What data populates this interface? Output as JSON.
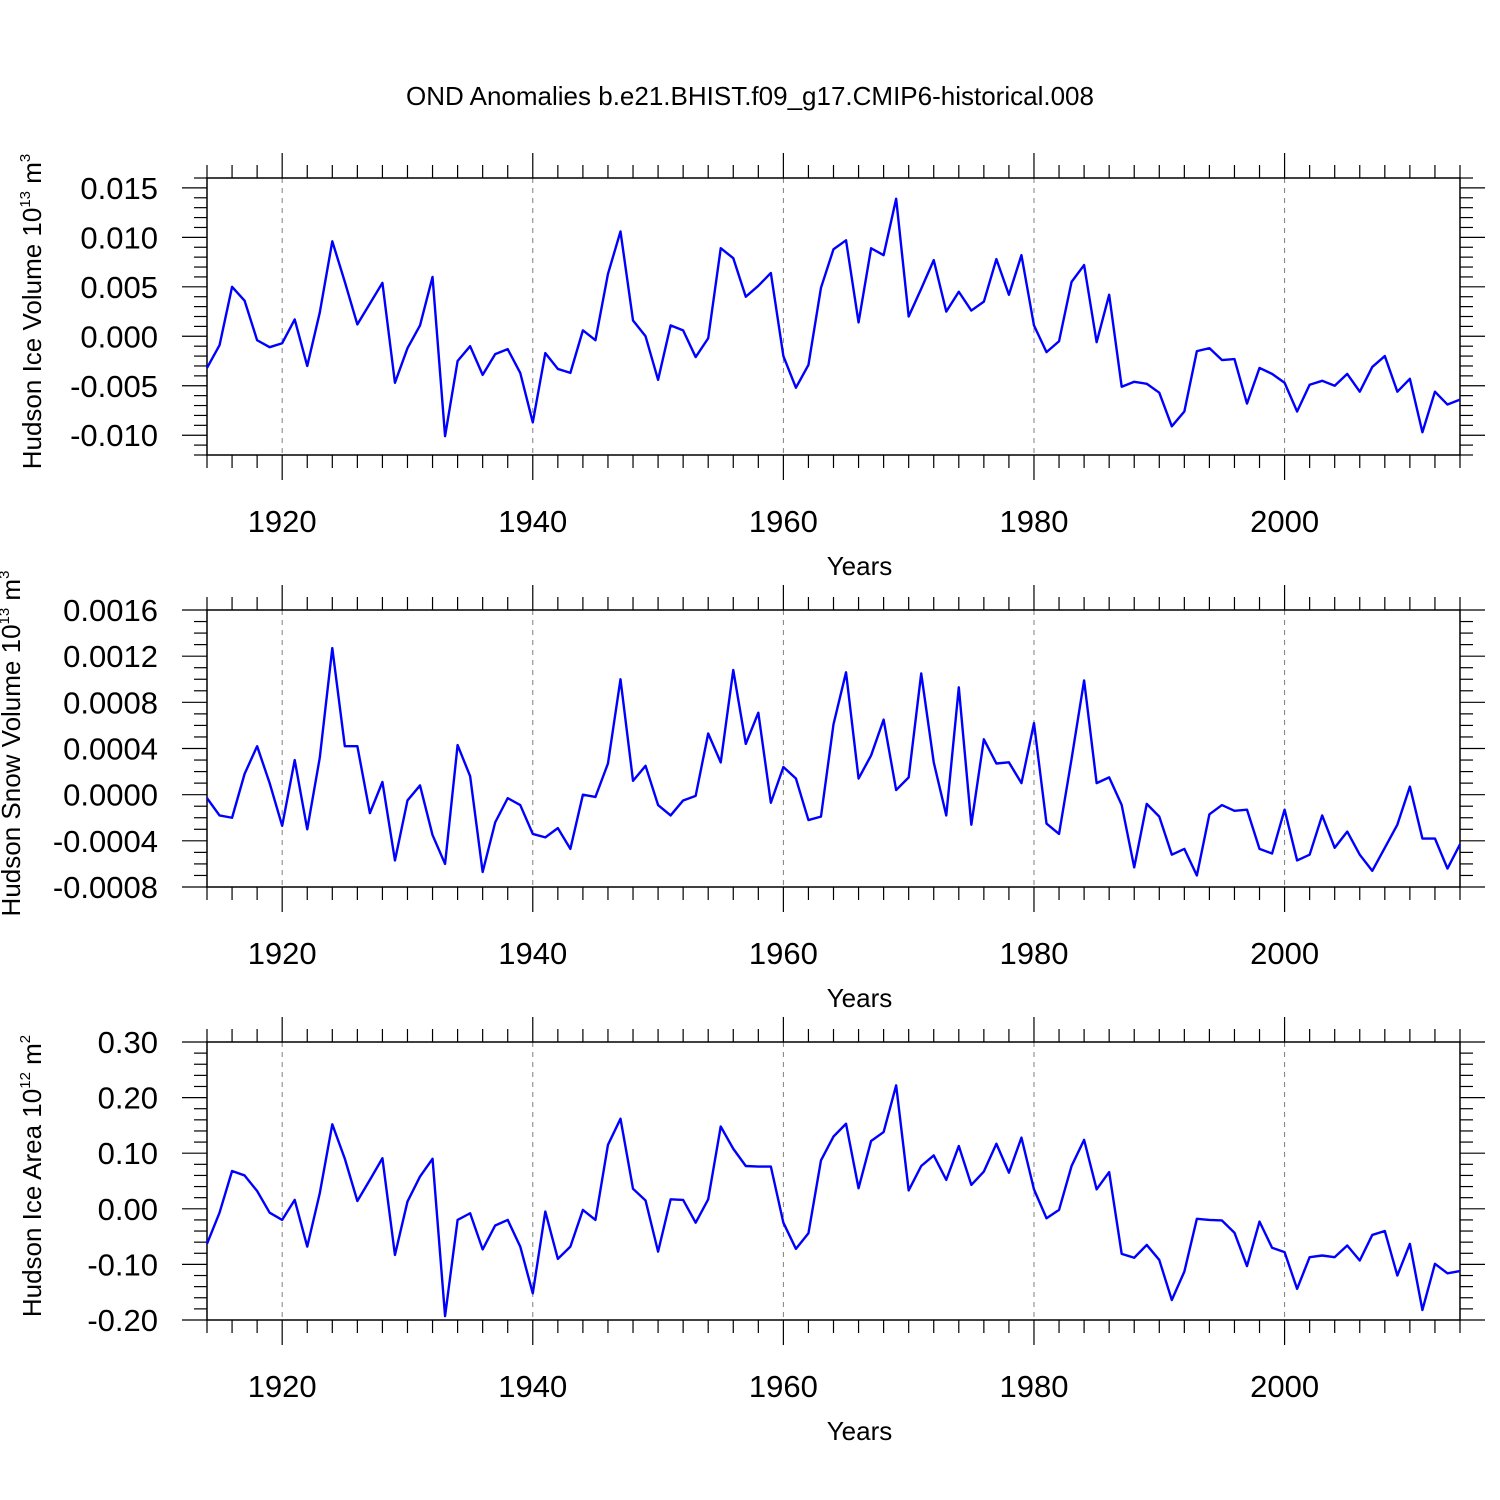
{
  "title": "OND Anomalies b.e21.BHIST.f09_g17.CMIP6-historical.008",
  "colors": {
    "line": "#0000ff",
    "axis": "#000000",
    "grid": "#7f7f7f"
  },
  "chart_data": [
    {
      "type": "line",
      "title": "OND Anomalies b.e21.BHIST.f09_g17.CMIP6-historical.008",
      "xlabel": "Years",
      "ylabel": "Hudson Ice Volume 10",
      "ylabel_sup": "13",
      "ylabel_unit": "m",
      "ylabel_unit_sup": "3",
      "xlim": [
        1914,
        2014
      ],
      "ylim": [
        -0.012,
        0.016
      ],
      "yticks": [
        -0.01,
        -0.005,
        0.0,
        0.005,
        0.01,
        0.015
      ],
      "ytick_labels": [
        "-0.010",
        "-0.005",
        "0.000",
        "0.005",
        "0.010",
        "0.015"
      ],
      "yminor_step": 0.001,
      "xticks": [
        1920,
        1940,
        1960,
        1980,
        2000
      ],
      "xtick_labels": [
        "1920",
        "1940",
        "1960",
        "1980",
        "2000"
      ],
      "xminor_step": 2,
      "grid_x": [
        1920,
        1940,
        1960,
        1980,
        2000
      ],
      "series": [
        {
          "name": "Hudson Ice Volume",
          "x_start": 1914,
          "values": [
            -0.0032,
            -0.0009,
            0.005,
            0.0036,
            -0.0004,
            -0.0011,
            -0.0007,
            0.0017,
            -0.003,
            0.0024,
            0.0096,
            0.0055,
            0.0012,
            0.0033,
            0.0054,
            -0.0047,
            -0.0012,
            0.0011,
            0.006,
            -0.0101,
            -0.0025,
            -0.001,
            -0.0039,
            -0.0018,
            -0.0013,
            -0.0037,
            -0.0087,
            -0.0017,
            -0.0033,
            -0.0037,
            0.0006,
            -0.0004,
            0.0063,
            0.0106,
            0.0016,
            0.0,
            -0.0044,
            0.0011,
            0.0006,
            -0.0021,
            -0.0002,
            0.0089,
            0.0079,
            0.004,
            0.0051,
            0.0064,
            -0.002,
            -0.0052,
            -0.0029,
            0.0049,
            0.0088,
            0.0097,
            0.0014,
            0.0089,
            0.0082,
            0.0139,
            0.002,
            0.0048,
            0.0077,
            0.0025,
            0.0045,
            0.0026,
            0.0035,
            0.0078,
            0.0042,
            0.0082,
            0.0011,
            -0.0016,
            -0.0005,
            0.0055,
            0.0072,
            -0.0006,
            0.0042,
            -0.0051,
            -0.0046,
            -0.0048,
            -0.0057,
            -0.0091,
            -0.0076,
            -0.0015,
            -0.0012,
            -0.0024,
            -0.0023,
            -0.0068,
            -0.0032,
            -0.0038,
            -0.0047,
            -0.0076,
            -0.0049,
            -0.0045,
            -0.005,
            -0.0038,
            -0.0056,
            -0.0031,
            -0.002,
            -0.0056,
            -0.0043,
            -0.0097,
            -0.0056,
            -0.0069,
            -0.0064
          ]
        }
      ]
    },
    {
      "type": "line",
      "xlabel": "Years",
      "ylabel": "Hudson Snow Volume 10",
      "ylabel_sup": "13",
      "ylabel_unit": "m",
      "ylabel_unit_sup": "3",
      "xlim": [
        1914,
        2014
      ],
      "ylim": [
        -0.0008,
        0.0016
      ],
      "yticks": [
        -0.0008,
        -0.0004,
        0.0,
        0.0004,
        0.0008,
        0.0012,
        0.0016
      ],
      "ytick_labels": [
        "-0.0008",
        "-0.0004",
        "0.0000",
        "0.0004",
        "0.0008",
        "0.0012",
        "0.0016"
      ],
      "yminor_step": 0.0001,
      "xticks": [
        1920,
        1940,
        1960,
        1980,
        2000
      ],
      "xtick_labels": [
        "1920",
        "1940",
        "1960",
        "1980",
        "2000"
      ],
      "xminor_step": 2,
      "grid_x": [
        1920,
        1940,
        1960,
        1980,
        2000
      ],
      "series": [
        {
          "name": "Hudson Snow Volume",
          "x_start": 1914,
          "values": [
            -3e-05,
            -0.00018,
            -0.0002,
            0.00018,
            0.00042,
            0.0001,
            -0.00027,
            0.0003,
            -0.0003,
            0.00032,
            0.00127,
            0.00042,
            0.00042,
            -0.00016,
            0.00011,
            -0.00057,
            -5e-05,
            8e-05,
            -0.00035,
            -0.0006,
            0.00043,
            0.00016,
            -0.00067,
            -0.00024,
            -3e-05,
            -9e-05,
            -0.00034,
            -0.00037,
            -0.00029,
            -0.00047,
            0.0,
            -2e-05,
            0.00027,
            0.001,
            0.00012,
            0.00025,
            -9e-05,
            -0.00018,
            -5e-05,
            -1e-05,
            0.00053,
            0.00028,
            0.00108,
            0.00044,
            0.00071,
            -7e-05,
            0.00024,
            0.00014,
            -0.00022,
            -0.00019,
            0.00061,
            0.00106,
            0.00014,
            0.00034,
            0.00065,
            4e-05,
            0.00015,
            0.00105,
            0.00028,
            -0.00018,
            0.00093,
            -0.00026,
            0.00048,
            0.00027,
            0.00028,
            0.0001,
            0.00062,
            -0.00025,
            -0.00034,
            0.00031,
            0.00099,
            0.0001,
            0.00015,
            -9e-05,
            -0.00063,
            -8e-05,
            -0.00019,
            -0.00052,
            -0.00047,
            -0.0007,
            -0.00017,
            -9e-05,
            -0.00014,
            -0.00013,
            -0.00047,
            -0.00051,
            -0.00013,
            -0.00057,
            -0.00052,
            -0.00018,
            -0.00046,
            -0.00032,
            -0.00052,
            -0.00066,
            -0.00046,
            -0.00026,
            7e-05,
            -0.00038,
            -0.00038,
            -0.00064,
            -0.00043
          ]
        }
      ]
    },
    {
      "type": "line",
      "xlabel": "Years",
      "ylabel": "Hudson Ice Area 10",
      "ylabel_sup": "12",
      "ylabel_unit": "m",
      "ylabel_unit_sup": "2",
      "xlim": [
        1914,
        2014
      ],
      "ylim": [
        -0.2,
        0.3
      ],
      "yticks": [
        -0.2,
        -0.1,
        0.0,
        0.1,
        0.2,
        0.3
      ],
      "ytick_labels": [
        "-0.20",
        "-0.10",
        "0.00",
        "0.10",
        "0.20",
        "0.30"
      ],
      "yminor_step": 0.02,
      "xticks": [
        1920,
        1940,
        1960,
        1980,
        2000
      ],
      "xtick_labels": [
        "1920",
        "1940",
        "1960",
        "1980",
        "2000"
      ],
      "xminor_step": 2,
      "grid_x": [
        1920,
        1940,
        1960,
        1980,
        2000
      ],
      "series": [
        {
          "name": "Hudson Ice Area",
          "x_start": 1914,
          "values": [
            -0.063,
            -0.007,
            0.068,
            0.06,
            0.032,
            -0.007,
            -0.02,
            0.016,
            -0.068,
            0.028,
            0.152,
            0.09,
            0.014,
            0.052,
            0.091,
            -0.083,
            0.013,
            0.058,
            0.09,
            -0.193,
            -0.02,
            -0.008,
            -0.073,
            -0.03,
            -0.02,
            -0.068,
            -0.152,
            -0.005,
            -0.09,
            -0.068,
            -0.002,
            -0.02,
            0.115,
            0.162,
            0.036,
            0.015,
            -0.077,
            0.017,
            0.016,
            -0.025,
            0.017,
            0.148,
            0.108,
            0.077,
            0.076,
            0.076,
            -0.025,
            -0.072,
            -0.044,
            0.087,
            0.13,
            0.153,
            0.037,
            0.122,
            0.138,
            0.222,
            0.033,
            0.077,
            0.096,
            0.052,
            0.113,
            0.043,
            0.067,
            0.117,
            0.065,
            0.128,
            0.035,
            -0.017,
            -0.002,
            0.077,
            0.124,
            0.035,
            0.066,
            -0.081,
            -0.088,
            -0.065,
            -0.092,
            -0.164,
            -0.113,
            -0.018,
            -0.02,
            -0.021,
            -0.043,
            -0.103,
            -0.023,
            -0.07,
            -0.078,
            -0.144,
            -0.087,
            -0.084,
            -0.087,
            -0.066,
            -0.093,
            -0.047,
            -0.04,
            -0.12,
            -0.063,
            -0.182,
            -0.099,
            -0.116,
            -0.112
          ]
        }
      ]
    }
  ]
}
